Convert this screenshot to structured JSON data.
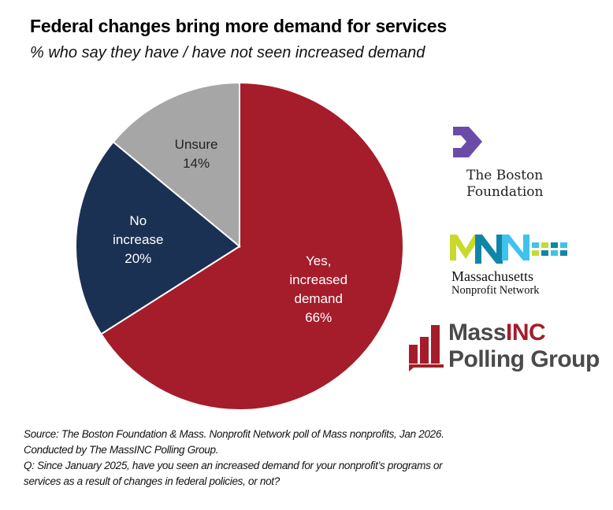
{
  "title": "Federal changes bring more demand for services",
  "subtitle": "% who say they have / have not seen increased demand",
  "chart_data": {
    "type": "pie",
    "start": "top",
    "direction": "clockwise",
    "slices": [
      {
        "label_lines": [
          "Yes,",
          "increased",
          "demand"
        ],
        "value": 66,
        "value_label": "66%",
        "color": "#A51C2B"
      },
      {
        "label_lines": [
          "No",
          "increase"
        ],
        "value": 20,
        "value_label": "20%",
        "color": "#1B3153"
      },
      {
        "label_lines": [
          "Unsure"
        ],
        "value": 14,
        "value_label": "14%",
        "color": "#A6A6A6"
      }
    ]
  },
  "logos": {
    "boston_foundation": {
      "line1": "The Boston",
      "line2": "Foundation",
      "color": "#6B4BA8"
    },
    "mnn": {
      "mark": "MNN",
      "line1": "Massachusetts",
      "line2": "Nonprofit Network"
    },
    "massinc": {
      "part1": "Mass",
      "part2": "INC",
      "line2": "Polling Group",
      "red": "#A51C2B",
      "gray": "#4A4A4A"
    }
  },
  "source": [
    "Source: The Boston Foundation & Mass. Nonprofit Network poll of Mass nonprofits, Jan 2026.",
    "Conducted  by The MassINC Polling Group.",
    "Q: Since January 2025, have you seen an increased demand for your nonprofit’s programs or",
    "services as a result of changes in federal policies, or not?"
  ]
}
